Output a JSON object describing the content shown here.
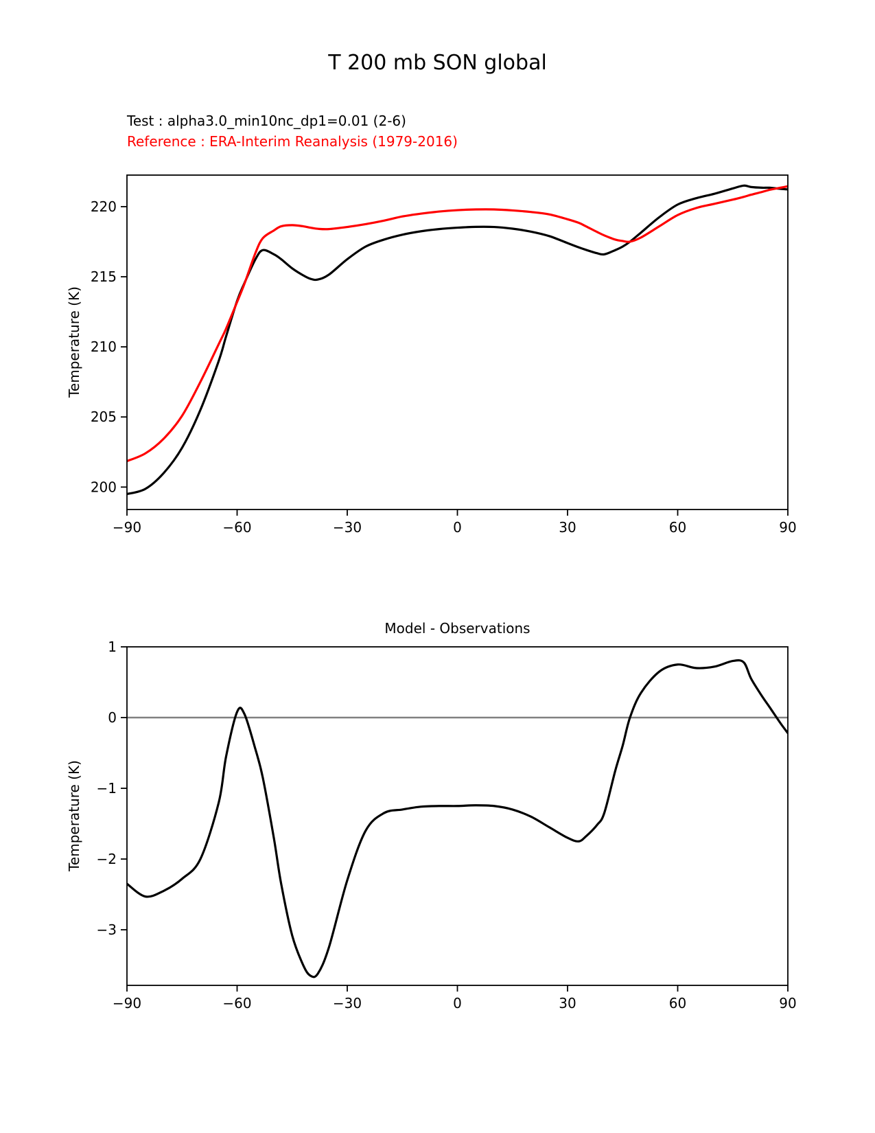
{
  "page": {
    "title": "T 200 mb SON global",
    "background": "#ffffff"
  },
  "legend": {
    "test": {
      "label": "Test : alpha3.0_min10nc_dp1=0.01 (2-6)",
      "color": "#000000"
    },
    "reference": {
      "label": "Reference : ERA-Interim Reanalysis (1979-2016)",
      "color": "#ff0000"
    }
  },
  "chart_data": [
    {
      "id": "temperature-profile",
      "type": "line",
      "title": "",
      "xlabel": "",
      "ylabel": "Temperature (K)",
      "xlim": [
        -90,
        90
      ],
      "ylim": [
        198.4,
        222.25
      ],
      "xticks": [
        -90,
        -60,
        -30,
        0,
        30,
        60,
        90
      ],
      "yticks": [
        200,
        205,
        210,
        215,
        220
      ],
      "grid": false,
      "legend_position": "above-left",
      "series": [
        {
          "id": "test",
          "name": "Test : alpha3.0_min10nc_dp1=0.01 (2-6)",
          "color": "#000000",
          "x": [
            -90,
            -85,
            -80,
            -75,
            -70,
            -65,
            -63,
            -60,
            -58,
            -55,
            -53,
            -50,
            -48,
            -45,
            -42,
            -40,
            -38,
            -35,
            -30,
            -25,
            -20,
            -15,
            -10,
            -5,
            0,
            5,
            10,
            15,
            20,
            25,
            30,
            33,
            35,
            38,
            40,
            43,
            45,
            47,
            50,
            55,
            60,
            65,
            70,
            75,
            78,
            80,
            83,
            85,
            88,
            90
          ],
          "y": [
            199.5,
            199.87,
            201.0,
            202.8,
            205.5,
            209.0,
            210.75,
            213.28,
            214.55,
            216.25,
            216.9,
            216.6,
            216.25,
            215.6,
            215.1,
            214.85,
            214.8,
            215.15,
            216.25,
            217.15,
            217.65,
            218.0,
            218.24,
            218.4,
            218.5,
            218.56,
            218.55,
            218.43,
            218.22,
            217.9,
            217.4,
            217.1,
            216.92,
            216.68,
            216.6,
            216.9,
            217.15,
            217.5,
            218.15,
            219.25,
            220.15,
            220.6,
            220.92,
            221.3,
            221.5,
            221.4,
            221.35,
            221.35,
            221.27,
            221.23
          ]
        },
        {
          "id": "reference",
          "name": "Reference : ERA-Interim Reanalysis (1979-2016)",
          "color": "#ff0000",
          "x": [
            -90,
            -85,
            -80,
            -75,
            -70,
            -65,
            -63,
            -60,
            -58,
            -55,
            -53,
            -50,
            -48,
            -45,
            -42,
            -40,
            -38,
            -35,
            -30,
            -25,
            -20,
            -15,
            -10,
            -5,
            0,
            5,
            10,
            15,
            20,
            25,
            30,
            33,
            35,
            38,
            40,
            43,
            45,
            47,
            50,
            55,
            60,
            65,
            70,
            75,
            78,
            80,
            83,
            85,
            88,
            90
          ],
          "y": [
            201.85,
            202.4,
            203.45,
            205.08,
            207.5,
            210.2,
            211.3,
            213.2,
            214.5,
            216.7,
            217.75,
            218.3,
            218.6,
            218.68,
            218.6,
            218.5,
            218.42,
            218.4,
            218.55,
            218.75,
            219.0,
            219.3,
            219.5,
            219.65,
            219.75,
            219.8,
            219.8,
            219.73,
            219.62,
            219.45,
            219.1,
            218.85,
            218.6,
            218.2,
            217.95,
            217.65,
            217.55,
            217.5,
            217.8,
            218.6,
            219.4,
            219.9,
            220.2,
            220.5,
            220.7,
            220.85,
            221.05,
            221.2,
            221.35,
            221.45
          ]
        }
      ]
    },
    {
      "id": "difference",
      "type": "line",
      "title": "Model - Observations",
      "xlabel": "",
      "ylabel": "Temperature (K)",
      "xlim": [
        -90,
        90
      ],
      "ylim": [
        -3.786,
        1.0
      ],
      "xticks": [
        -90,
        -60,
        -30,
        0,
        30,
        60,
        90
      ],
      "yticks": [
        1,
        0,
        -1,
        -2,
        -3
      ],
      "grid": false,
      "zero_line": {
        "y": 0,
        "color": "#808080"
      },
      "series": [
        {
          "id": "difference",
          "name": "Model - Observations",
          "color": "#000000",
          "x": [
            -90,
            -85,
            -80,
            -75,
            -70,
            -65,
            -63,
            -60,
            -58,
            -55,
            -53,
            -50,
            -48,
            -45,
            -42,
            -40,
            -38,
            -35,
            -30,
            -25,
            -20,
            -15,
            -10,
            -5,
            0,
            5,
            10,
            15,
            20,
            25,
            30,
            33,
            35,
            38,
            40,
            43,
            45,
            47,
            50,
            55,
            60,
            65,
            70,
            75,
            78,
            80,
            83,
            85,
            88,
            90
          ],
          "y": [
            -2.35,
            -2.53,
            -2.45,
            -2.28,
            -2.0,
            -1.2,
            -0.55,
            0.08,
            0.05,
            -0.45,
            -0.85,
            -1.7,
            -2.35,
            -3.08,
            -3.5,
            -3.65,
            -3.62,
            -3.25,
            -2.3,
            -1.6,
            -1.35,
            -1.3,
            -1.26,
            -1.25,
            -1.25,
            -1.24,
            -1.25,
            -1.3,
            -1.4,
            -1.55,
            -1.7,
            -1.75,
            -1.68,
            -1.52,
            -1.35,
            -0.75,
            -0.4,
            0.0,
            0.35,
            0.65,
            0.75,
            0.7,
            0.72,
            0.8,
            0.78,
            0.55,
            0.3,
            0.15,
            -0.08,
            -0.22
          ]
        }
      ]
    }
  ]
}
